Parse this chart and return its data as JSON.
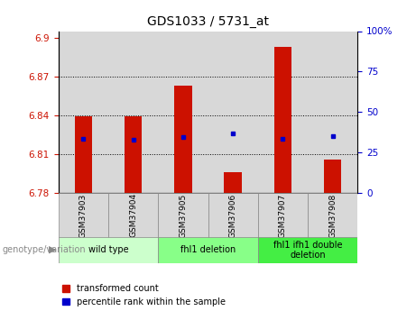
{
  "title": "GDS1033 / 5731_at",
  "samples": [
    "GSM37903",
    "GSM37904",
    "GSM37905",
    "GSM37906",
    "GSM37907",
    "GSM37908"
  ],
  "bar_values": [
    6.839,
    6.839,
    6.863,
    6.796,
    6.893,
    6.806
  ],
  "bar_base": 6.78,
  "percentile_values": [
    6.822,
    6.821,
    6.823,
    6.826,
    6.822,
    6.824
  ],
  "ylim_left": [
    6.78,
    6.905
  ],
  "ylim_right": [
    0,
    100
  ],
  "yticks_left": [
    6.78,
    6.81,
    6.84,
    6.87,
    6.9
  ],
  "yticks_right": [
    0,
    25,
    50,
    75,
    100
  ],
  "hlines": [
    6.81,
    6.84,
    6.87
  ],
  "bar_color": "#cc1100",
  "dot_color": "#0000cc",
  "group_configs": [
    {
      "sample_indices": [
        0,
        1
      ],
      "label": "wild type",
      "color": "#ccffcc"
    },
    {
      "sample_indices": [
        2,
        3
      ],
      "label": "fhl1 deletion",
      "color": "#88ff88"
    },
    {
      "sample_indices": [
        4,
        5
      ],
      "label": "fhl1 ifh1 double\ndeletion",
      "color": "#44ee44"
    }
  ],
  "legend_red": "transformed count",
  "legend_blue": "percentile rank within the sample",
  "genotype_label": "genotype/variation",
  "bar_width": 0.35,
  "tick_label_color_left": "#cc1100",
  "tick_label_color_right": "#0000cc",
  "sample_bg": "#d8d8d8"
}
